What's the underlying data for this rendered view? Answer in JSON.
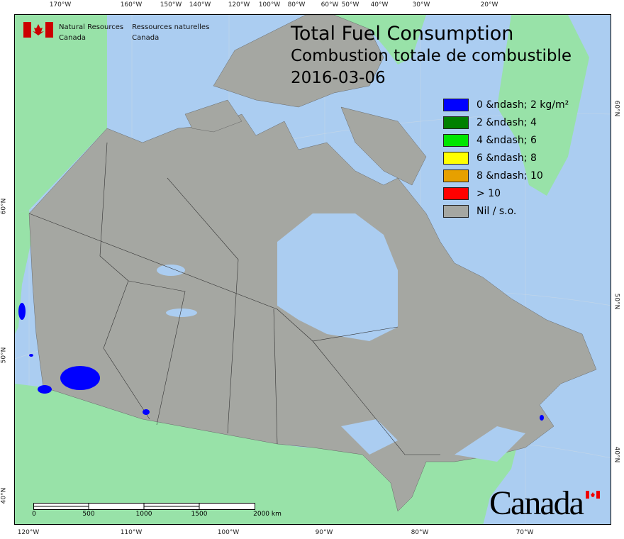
{
  "title": {
    "en": "Total Fuel Consumption",
    "fr": "Combustion totale de combustible",
    "date": "2016-03-06"
  },
  "agency": {
    "en_line1": "Natural Resources",
    "en_line2": "Canada",
    "fr_line1": "Ressources naturelles",
    "fr_line2": "Canada"
  },
  "wordmark": "Canada",
  "legend": [
    {
      "label": "0 &ndash; 2 kg/m²",
      "color": "#0000ff"
    },
    {
      "label": "2 &ndash; 4",
      "color": "#008000"
    },
    {
      "label": "4 &ndash; 6",
      "color": "#00e600"
    },
    {
      "label": "6 &ndash; 8",
      "color": "#ffff00"
    },
    {
      "label": "8 &ndash; 10",
      "color": "#e6a000"
    },
    {
      "label": "> 10",
      "color": "#ff0000"
    },
    {
      "label": "Nil / s.o.",
      "color": "#a5a7a2"
    }
  ],
  "top_ticks": [
    "170°W",
    "160°W",
    "150°W",
    "140°W",
    "120°W",
    "100°W",
    "80°W",
    "60°W",
    "50°W",
    "40°W",
    "30°W",
    "20°W"
  ],
  "bottom_ticks": [
    "120°W",
    "110°W",
    "100°W",
    "90°W",
    "80°W",
    "70°W"
  ],
  "left_ticks": [
    "60°N",
    "50°N",
    "40°N"
  ],
  "right_ticks": [
    "60°N",
    "50°N",
    "40°N"
  ],
  "scale_bar": {
    "labels": [
      "0",
      "500",
      "1000",
      "1500",
      "2000 km"
    ]
  },
  "colors": {
    "ocean": "#abcdf1",
    "land": "#98e2a8",
    "canada": "#a5a7a2"
  }
}
